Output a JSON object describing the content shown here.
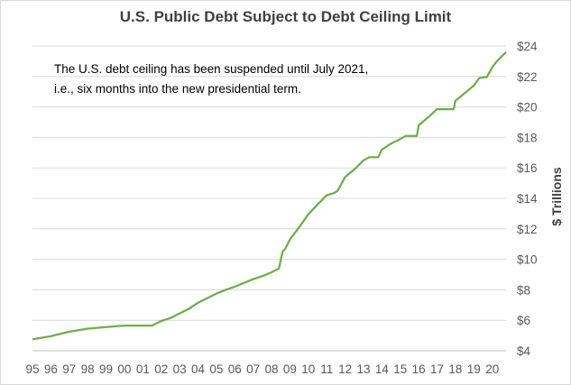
{
  "chart_data": {
    "type": "line",
    "title": "U.S. Public Debt Subject to Debt Ceiling Limit",
    "annotation": "The U.S. debt ceiling has been suspended until July 2021, i.e., six months into the new presidential term.",
    "ylabel": "$ Trillions",
    "xlabel": "",
    "x_tick_labels": [
      "95",
      "96",
      "97",
      "98",
      "99",
      "00",
      "01",
      "02",
      "03",
      "04",
      "05",
      "06",
      "07",
      "08",
      "09",
      "10",
      "11",
      "12",
      "13",
      "14",
      "15",
      "16",
      "17",
      "18",
      "19",
      "20"
    ],
    "y_tick_labels": [
      "$4",
      "$6",
      "$8",
      "$10",
      "$12",
      "$14",
      "$16",
      "$18",
      "$20",
      "$22",
      "$24"
    ],
    "ylim": [
      4,
      24
    ],
    "xlim": [
      1995,
      2020.75
    ],
    "y_axis_position": "right",
    "grid": "horizontal",
    "series": [
      {
        "color": "#70ad47",
        "x": [
          1995.0,
          1996.0,
          1997.0,
          1998.0,
          1999.0,
          2000.0,
          2001.0,
          2001.5,
          2002.0,
          2002.5,
          2003.0,
          2003.5,
          2004.0,
          2004.5,
          2005.0,
          2005.5,
          2006.0,
          2006.5,
          2007.0,
          2007.5,
          2008.0,
          2008.4,
          2008.6,
          2008.75,
          2009.0,
          2009.5,
          2010.0,
          2010.5,
          2011.0,
          2011.4,
          2011.6,
          2012.0,
          2012.5,
          2013.0,
          2013.3,
          2013.8,
          2014.0,
          2014.5,
          2015.0,
          2015.3,
          2015.9,
          2016.0,
          2016.5,
          2017.0,
          2017.25,
          2017.9,
          2018.0,
          2018.5,
          2019.0,
          2019.3,
          2019.6,
          2019.7,
          2020.0,
          2020.25,
          2020.5,
          2020.75
        ],
        "y": [
          4.75,
          4.95,
          5.25,
          5.45,
          5.55,
          5.65,
          5.65,
          5.65,
          5.95,
          6.15,
          6.45,
          6.75,
          7.15,
          7.45,
          7.75,
          8.0,
          8.2,
          8.45,
          8.7,
          8.9,
          9.15,
          9.4,
          10.5,
          10.7,
          11.3,
          12.1,
          12.95,
          13.6,
          14.2,
          14.35,
          14.5,
          15.4,
          15.9,
          16.5,
          16.7,
          16.7,
          17.2,
          17.6,
          17.9,
          18.1,
          18.1,
          18.8,
          19.3,
          19.85,
          19.85,
          19.85,
          20.4,
          20.9,
          21.4,
          21.9,
          21.95,
          21.95,
          22.6,
          23.0,
          23.3,
          23.6
        ]
      }
    ]
  }
}
